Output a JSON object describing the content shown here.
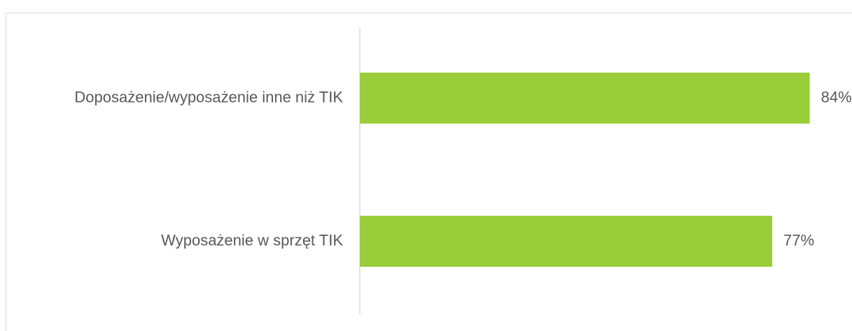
{
  "chart_data": {
    "type": "bar",
    "orientation": "horizontal",
    "categories": [
      "Doposażenie/wyposażenie inne niż TIK",
      "Wyposażenie w sprzęt TIK"
    ],
    "values": [
      84,
      77
    ],
    "value_labels": [
      "84%",
      "77%"
    ],
    "color": "#9acd3a",
    "xlim": [
      0,
      100
    ]
  }
}
